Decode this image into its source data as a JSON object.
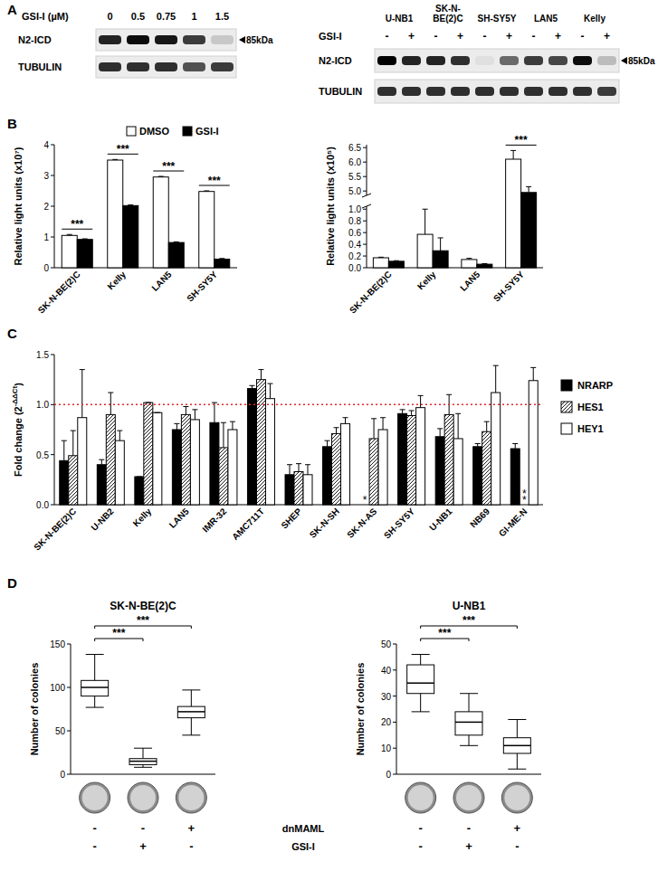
{
  "panel_labels": [
    "A",
    "B",
    "C",
    "D"
  ],
  "blots": [
    {
      "header": "GSI-I (µM)",
      "lanes": [
        "0",
        "0.5",
        "0.75",
        "1",
        "1.5"
      ],
      "rows": [
        {
          "name": "N2-ICD",
          "intensity": [
            0.85,
            0.95,
            0.9,
            0.75,
            0.15
          ]
        },
        {
          "name": "TUBULIN",
          "intensity": [
            0.8,
            0.8,
            0.8,
            0.65,
            0.75
          ]
        }
      ],
      "size_label": "85kDa"
    },
    {
      "treatment": "GSI-I",
      "groups": [
        "U-NB1",
        "SK-N-\nBE(2)C",
        "SH-SY5Y",
        "LAN5",
        "Kelly"
      ],
      "lanes": [
        "-",
        "+",
        "-",
        "+",
        "-",
        "+",
        "-",
        "+",
        "-",
        "+"
      ],
      "rows": [
        {
          "name": "N2-ICD",
          "intensity": [
            1,
            0.85,
            0.85,
            0.8,
            0.05,
            0.55,
            0.75,
            0.7,
            0.95,
            0.2
          ]
        },
        {
          "name": "TUBULIN",
          "intensity": [
            0.8,
            0.8,
            0.8,
            0.8,
            0.8,
            0.8,
            0.8,
            0.8,
            0.8,
            0.75
          ]
        }
      ],
      "size_label": "85kDa"
    }
  ],
  "chart_data": [
    {
      "type": "bar",
      "y_label": "Relative light units (x10⁷)",
      "categories": [
        "SK-N-BE(2)C",
        "Kelly",
        "LAN5",
        "SH-SY5Y"
      ],
      "ylim": [
        0,
        4
      ],
      "yticks": [
        0,
        1,
        2,
        3,
        4
      ],
      "legend": "top",
      "series": [
        {
          "name": "DMSO",
          "color": "#ffffff",
          "values": [
            1.05,
            3.5,
            2.95,
            2.48
          ],
          "errors": [
            0.03,
            0.02,
            0.02,
            0.02
          ]
        },
        {
          "name": "GSI-I",
          "color": "#000000",
          "values": [
            0.92,
            2.02,
            0.82,
            0.28
          ],
          "errors": [
            0.02,
            0.02,
            0.02,
            0.02
          ]
        }
      ],
      "significance": [
        "***",
        "***",
        "***",
        "***"
      ]
    },
    {
      "type": "bar",
      "y_label": "Relative light units (x10⁵)",
      "categories": [
        "SK-N-BE(2)C",
        "Kelly",
        "LAN5",
        "SH-SY5Y"
      ],
      "ylim": [
        0,
        6.6
      ],
      "axis_break": [
        1.05,
        4.85
      ],
      "yticks": [
        {
          "value": 0,
          "label": "0.0"
        },
        {
          "value": 0.2,
          "label": "0.2"
        },
        {
          "value": 0.4,
          "label": "0.4"
        },
        {
          "value": 0.6,
          "label": "0.6"
        },
        {
          "value": 0.8,
          "label": "0.8"
        },
        {
          "value": 1,
          "label": "1.0"
        },
        {
          "value": 5,
          "label": "5.0"
        },
        {
          "value": 5.5,
          "label": "5.5"
        },
        {
          "value": 6,
          "label": "6.0"
        },
        {
          "value": 6.5,
          "label": "6.5"
        }
      ],
      "series": [
        {
          "color": "#ffffff",
          "values": [
            0.17,
            0.57,
            0.14,
            6.1
          ],
          "errors": [
            0.01,
            0.43,
            0.02,
            0.3
          ]
        },
        {
          "color": "#000000",
          "values": [
            0.11,
            0.29,
            0.06,
            4.95
          ],
          "errors": [
            0.01,
            0.22,
            0.01,
            0.2
          ]
        }
      ],
      "significance": [
        null,
        null,
        null,
        "***"
      ]
    },
    {
      "type": "bar",
      "y_label": "Fold change (2-ΔΔCt)",
      "categories": [
        "SK-N-BE(2)C",
        "U-NB2",
        "Kelly",
        "LAN5",
        "IMR-32",
        "AMC711T",
        "SHEP",
        "SK-N-SH",
        "SK-N-AS",
        "SH-SY5Y",
        "U-NB1",
        "NB69",
        "GI-ME-N"
      ],
      "ylim": [
        0,
        1.5
      ],
      "yticks": [
        {
          "value": 0,
          "label": "0.0"
        },
        {
          "value": 0.5,
          "label": "0.5"
        },
        {
          "value": 1,
          "label": "1.0"
        },
        {
          "value": 1.5,
          "label": "1.5"
        }
      ],
      "hline": 1.0,
      "legend": "right",
      "series": [
        {
          "name": "NRARP",
          "color": "#000000",
          "values": [
            0.44,
            0.4,
            0.28,
            0.75,
            0.82,
            1.16,
            0.3,
            0.58,
            null,
            0.91,
            0.68,
            0.58,
            0.56
          ],
          "errors": [
            0.2,
            0.05,
            0,
            0.06,
            0.2,
            0.03,
            0.1,
            0.06,
            null,
            0.04,
            0.08,
            0.03,
            0.05
          ]
        },
        {
          "name": "HES1",
          "color": "#ffffff",
          "values": [
            0.49,
            0.9,
            1.02,
            0.9,
            0.57,
            1.25,
            0.33,
            0.71,
            0.66,
            0.89,
            0.9,
            0.73,
            null
          ],
          "errors": [
            0.25,
            0.22,
            0,
            0.08,
            0.25,
            0.1,
            0.08,
            0.06,
            0.2,
            0.05,
            0.2,
            0.1,
            null
          ]
        },
        {
          "name": "HEY1",
          "color": "#ffffff",
          "values": [
            0.87,
            0.64,
            0.92,
            0.85,
            0.75,
            1.06,
            0.3,
            0.81,
            0.75,
            0.97,
            0.66,
            1.12,
            1.24
          ],
          "errors": [
            0.48,
            0.1,
            0,
            0.1,
            0.08,
            0.15,
            0.1,
            0.06,
            0.12,
            0.12,
            0.25,
            0.27,
            0.13
          ]
        }
      ],
      "annotations": [
        {
          "text": "*",
          "category": 8,
          "series": 0
        },
        {
          "text": "**",
          "category": 12,
          "series": 1
        }
      ]
    },
    {
      "type": "box",
      "title": "SK-N-BE(2)C",
      "y_label": "Number of colonies",
      "ylim": [
        0,
        150
      ],
      "yticks": [
        0,
        50,
        100,
        150
      ],
      "boxes": [
        {
          "min": 77,
          "q1": 90,
          "median": 100,
          "q3": 108,
          "max": 138
        },
        {
          "min": 8,
          "q1": 11,
          "median": 15,
          "q3": 18,
          "max": 30
        },
        {
          "min": 45,
          "q1": 65,
          "median": 72,
          "q3": 78,
          "max": 97
        }
      ],
      "signs": [
        [
          "-",
          "-",
          "+"
        ],
        [
          "-",
          "+",
          "-"
        ]
      ],
      "significance": [
        {
          "from": 0,
          "to": 1,
          "label": "***"
        },
        {
          "from": 0,
          "to": 2,
          "label": "***"
        }
      ]
    },
    {
      "type": "box",
      "title": "U-NB1",
      "y_label": "Number of colonies",
      "ylim": [
        0,
        50
      ],
      "yticks": [
        0,
        10,
        20,
        30,
        40,
        50
      ],
      "boxes": [
        {
          "min": 24,
          "q1": 31,
          "median": 35,
          "q3": 42,
          "max": 46
        },
        {
          "min": 11,
          "q1": 15,
          "median": 20,
          "q3": 24,
          "max": 31
        },
        {
          "min": 2,
          "q1": 8,
          "median": 11,
          "q3": 14,
          "max": 21
        }
      ],
      "signs": [
        [
          "-",
          "-",
          "+"
        ],
        [
          "-",
          "+",
          "-"
        ]
      ],
      "significance": [
        {
          "from": 0,
          "to": 1,
          "label": "***"
        },
        {
          "from": 0,
          "to": 2,
          "label": "***"
        }
      ]
    }
  ],
  "box_condition_labels": [
    "dnMAML",
    "GSI-I"
  ]
}
